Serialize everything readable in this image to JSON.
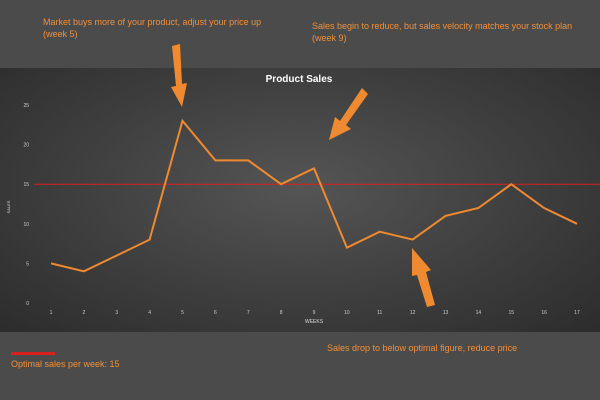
{
  "annotations": {
    "top_left": "Market buys more of your product, adjust your price up (week 5)",
    "top_right": "Sales begin to reduce, but sales velocity matches your stock plan (week 9)",
    "bottom": "Sales drop to below optimal figure, reduce price"
  },
  "legend": {
    "label": "Optimal sales per week: 15"
  },
  "colors": {
    "series_line": "#f08a30",
    "optimal_line": "#d92020",
    "arrow": "#f08a30",
    "annotation_text": "#f0903a"
  },
  "chart_data": {
    "type": "line",
    "title": "Product Sales",
    "xlabel": "WEEKS",
    "ylabel": "SALES",
    "categories": [
      "1",
      "2",
      "3",
      "4",
      "5",
      "6",
      "7",
      "8",
      "9",
      "10",
      "11",
      "12",
      "13",
      "14",
      "15",
      "16",
      "17"
    ],
    "series": [
      {
        "values": [
          5,
          4,
          6,
          8,
          23,
          18,
          18,
          15,
          17,
          7,
          9,
          8,
          11,
          12,
          15,
          12,
          10
        ]
      }
    ],
    "ylim": [
      0,
      25
    ],
    "yticks": [
      0,
      5,
      10,
      15,
      20,
      25
    ],
    "reference_line": 15,
    "grid": false
  }
}
